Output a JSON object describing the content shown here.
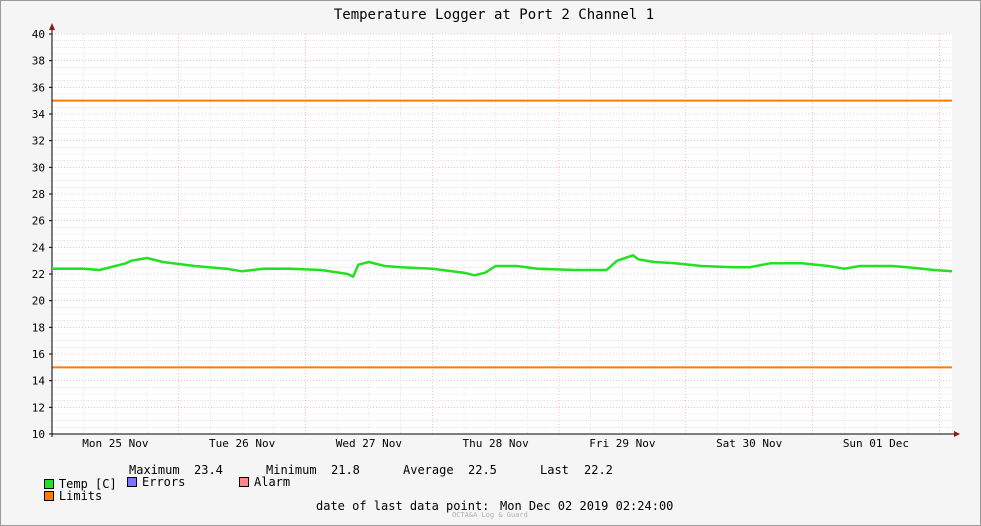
{
  "chart_data": {
    "type": "line",
    "title": "Temperature Logger at Port 2 Channel 1",
    "xlabel": "",
    "ylabel": "",
    "ylim": [
      10,
      40
    ],
    "yticks": [
      10,
      12,
      14,
      16,
      18,
      20,
      22,
      24,
      26,
      28,
      30,
      32,
      34,
      36,
      38,
      40
    ],
    "xlim": [
      "2019-11-25T00:00",
      "2019-12-02T02:24"
    ],
    "xtick_labels": [
      "Mon 25 Nov",
      "Tue 26 Nov",
      "Wed 27 Nov",
      "Thu 28 Nov",
      "Fri 29 Nov",
      "Sat 30 Nov",
      "Sun 01 Dec"
    ],
    "grid": true,
    "legend_position": "bottom",
    "series": [
      {
        "name": "Temp [C]",
        "color": "#22e022",
        "x": [
          "2019-11-25T00:00",
          "2019-11-25T06:00",
          "2019-11-25T09:00",
          "2019-11-25T14:00",
          "2019-11-25T15:00",
          "2019-11-25T18:00",
          "2019-11-25T21:00",
          "2019-11-26T03:00",
          "2019-11-26T09:00",
          "2019-11-26T12:00",
          "2019-11-26T16:00",
          "2019-11-26T21:00",
          "2019-11-27T03:00",
          "2019-11-27T08:00",
          "2019-11-27T09:00",
          "2019-11-27T10:00",
          "2019-11-27T12:00",
          "2019-11-27T15:00",
          "2019-11-27T18:00",
          "2019-11-28T00:00",
          "2019-11-28T06:00",
          "2019-11-28T08:00",
          "2019-11-28T10:00",
          "2019-11-28T12:00",
          "2019-11-28T16:00",
          "2019-11-28T20:00",
          "2019-11-29T03:00",
          "2019-11-29T09:00",
          "2019-11-29T11:00",
          "2019-11-29T14:00",
          "2019-11-29T15:00",
          "2019-11-29T18:00",
          "2019-11-29T22:00",
          "2019-11-30T03:00",
          "2019-11-30T09:00",
          "2019-11-30T12:00",
          "2019-11-30T16:00",
          "2019-11-30T22:00",
          "2019-12-01T03:00",
          "2019-12-01T06:00",
          "2019-12-01T09:00",
          "2019-12-01T15:00",
          "2019-12-01T18:00",
          "2019-12-01T23:00",
          "2019-12-02T02:24"
        ],
        "values": [
          22.4,
          22.4,
          22.3,
          22.8,
          23.0,
          23.2,
          22.9,
          22.6,
          22.4,
          22.2,
          22.4,
          22.4,
          22.3,
          22.0,
          21.8,
          22.7,
          22.9,
          22.6,
          22.5,
          22.4,
          22.1,
          21.9,
          22.1,
          22.6,
          22.6,
          22.4,
          22.3,
          22.3,
          23.0,
          23.4,
          23.1,
          22.9,
          22.8,
          22.6,
          22.5,
          22.5,
          22.8,
          22.8,
          22.6,
          22.4,
          22.6,
          22.6,
          22.5,
          22.3,
          22.2
        ]
      },
      {
        "name": "Limits",
        "color": "#ff7a00",
        "values": [
          35,
          15
        ]
      }
    ]
  },
  "legend": {
    "temp_label": "Temp [C]",
    "maximum_label": "Maximum",
    "maximum_value": "23.4",
    "minimum_label": "Minimum",
    "minimum_value": "21.8",
    "average_label": "Average",
    "average_value": "22.5",
    "last_label": "Last",
    "last_value": "22.2",
    "limits_label": "Limits",
    "errors_label": "Errors",
    "alarm_label": "Alarm",
    "colors": {
      "temp": "#22e022",
      "limits": "#ff7a00",
      "errors": "#7777ff",
      "alarm": "#ff8888"
    }
  },
  "footer": {
    "last_point_label": "date of last data point:",
    "last_point_value": "Mon Dec 02 2019 02:24:00",
    "watermark": "OCTA&A Log & Guard"
  }
}
